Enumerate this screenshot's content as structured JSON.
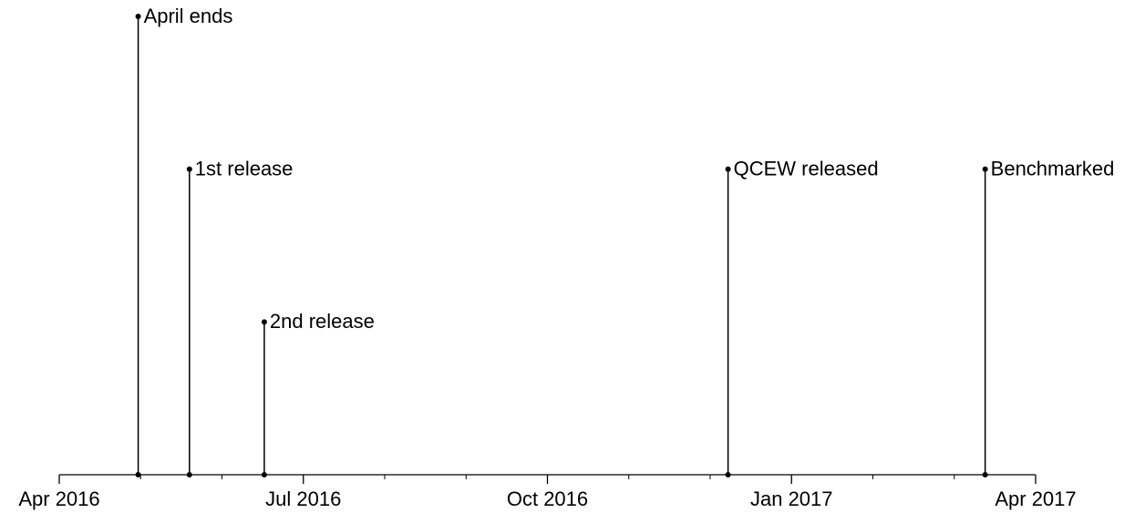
{
  "chart_data": {
    "type": "timeline",
    "events": [
      "April ends",
      "1st release",
      "2nd release",
      "QCEW released",
      "Benchmarked"
    ],
    "x": [
      0.97,
      1.6,
      2.52,
      8.22,
      11.38
    ],
    "values": [
      3,
      2,
      1,
      2,
      2
    ],
    "color": "#000000",
    "xlim": [
      0,
      12
    ],
    "xticks": [
      {
        "value": 0,
        "label": "Apr 2016"
      },
      {
        "value": 3,
        "label": "Jul 2016"
      },
      {
        "value": 6,
        "label": "Oct 2016"
      },
      {
        "value": 9,
        "label": "Jan 2017"
      },
      {
        "value": 12,
        "label": "Apr 2017"
      }
    ],
    "xminorticks": [
      1,
      2,
      4,
      5,
      7,
      8,
      10,
      11
    ],
    "ylim": [
      0,
      3
    ]
  }
}
